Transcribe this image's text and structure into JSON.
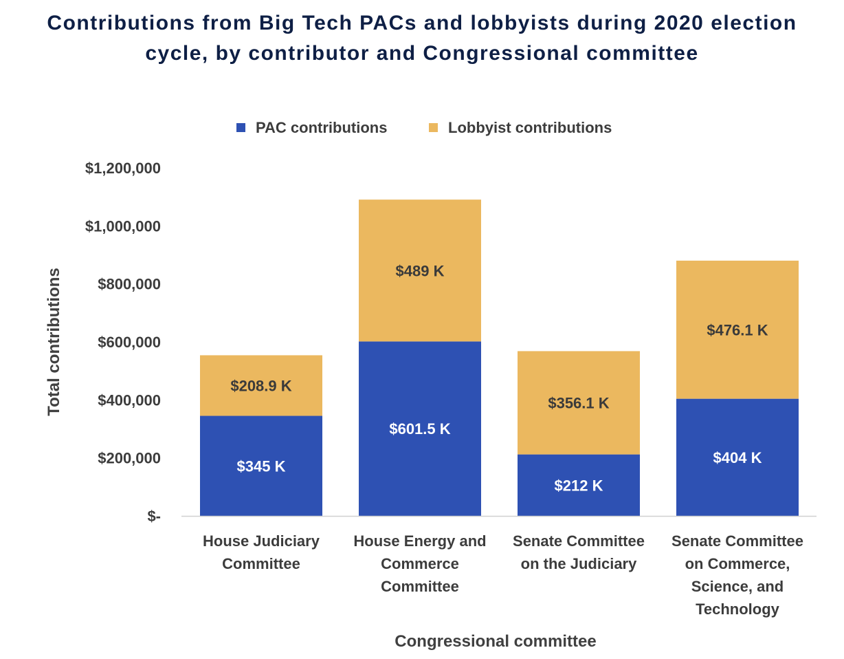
{
  "chart_data": {
    "type": "bar",
    "stacked": true,
    "title_line1": "Contributions from Big Tech PACs and lobbyists during 2020 election",
    "title_line2": "cycle, by contributor and Congressional committee",
    "xlabel": "Congressional committee",
    "ylabel": "Total contributions",
    "ylim": [
      0,
      1200000
    ],
    "yticks": [
      0,
      200000,
      400000,
      600000,
      800000,
      1000000,
      1200000
    ],
    "ytick_labels": [
      "$-",
      "$200,000",
      "$400,000",
      "$600,000",
      "$800,000",
      "$1,000,000",
      "$1,200,000"
    ],
    "categories": [
      [
        "House Judiciary",
        "Committee"
      ],
      [
        "House Energy and",
        "Commerce",
        "Committee"
      ],
      [
        "Senate Committee",
        "on the Judiciary"
      ],
      [
        "Senate Committee",
        "on Commerce,",
        "Science, and",
        "Technology"
      ]
    ],
    "legend_position": "top",
    "series": [
      {
        "name": "PAC contributions",
        "color": "#2e51b3",
        "values": [
          345000,
          601500,
          212000,
          404000
        ],
        "labels": [
          "$345 K",
          "$601.5 K",
          "$212 K",
          "$404 K"
        ],
        "label_color": "light"
      },
      {
        "name": "Lobbyist contributions",
        "color": "#ebb85f",
        "values": [
          208900,
          489000,
          356100,
          476100
        ],
        "labels": [
          "$208.9 K",
          "$489 K",
          "$356.1 K",
          "$476.1 K"
        ],
        "label_color": "dark"
      }
    ],
    "grid": false
  }
}
